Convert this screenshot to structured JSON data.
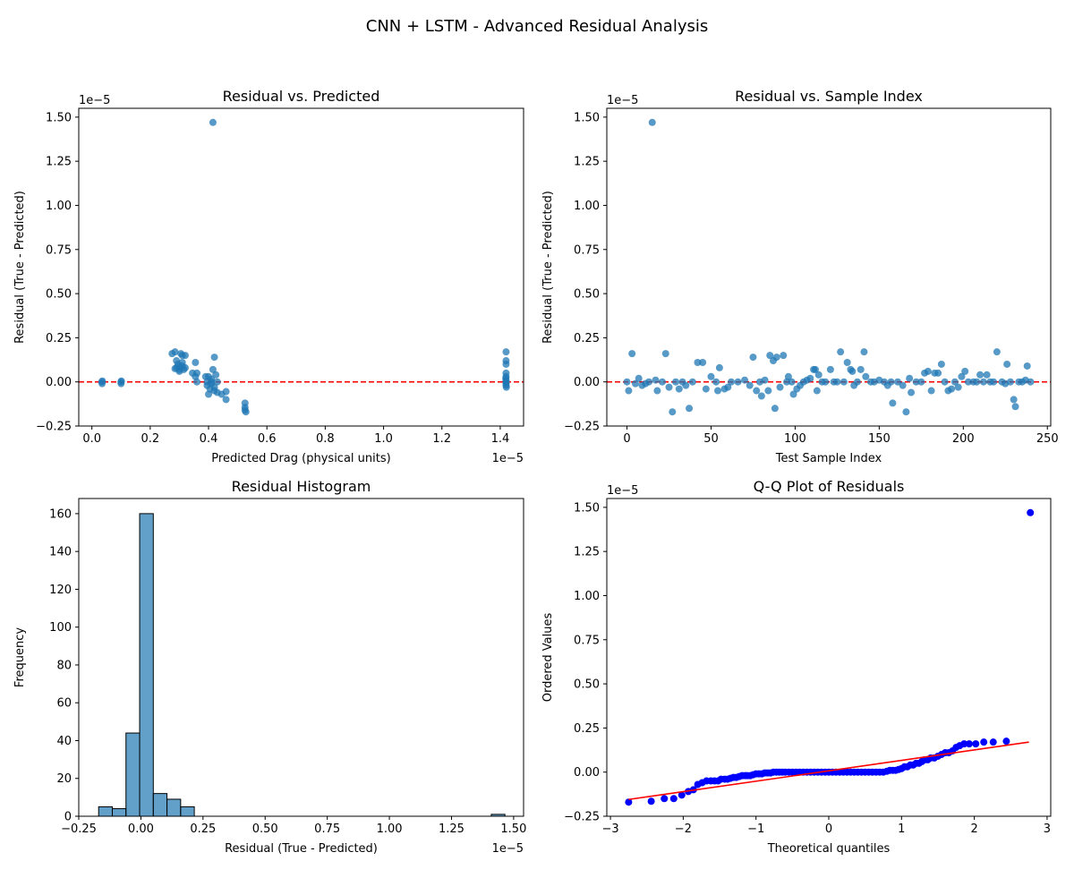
{
  "figure": {
    "title": "CNN + LSTM - Advanced Residual Analysis"
  },
  "colors": {
    "scatter": "#1f77b4",
    "hist": "#1f77b4",
    "zero_line": "#ff0000",
    "qq_points": "#0000ff",
    "qq_fit": "#ff0000"
  },
  "chart_data": [
    {
      "type": "scatter",
      "title": "Residual vs. Predicted",
      "xlabel": "Predicted Drag (physical units)",
      "ylabel": "Residual (True - Predicted)",
      "x_offset": "1e−5",
      "y_offset": "1e−5",
      "xlim": [
        -0.045,
        1.48
      ],
      "ylim": [
        -0.25,
        1.55
      ],
      "xticks": [
        0.0,
        0.2,
        0.4,
        0.6,
        0.8,
        1.0,
        1.2,
        1.4
      ],
      "xtick_labels": [
        "0.0",
        "0.2",
        "0.4",
        "0.6",
        "0.8",
        "1.0",
        "1.2",
        "1.4"
      ],
      "yticks": [
        -0.25,
        0.0,
        0.25,
        0.5,
        0.75,
        1.0,
        1.25,
        1.5
      ],
      "ytick_labels": [
        "−0.25",
        "0.00",
        "0.25",
        "0.50",
        "0.75",
        "1.00",
        "1.25",
        "1.50"
      ],
      "reference_line": {
        "y": 0.0,
        "style": "dashed"
      },
      "points": [
        [
          0.034,
          0.0
        ],
        [
          0.035,
          -0.01
        ],
        [
          0.036,
          0.005
        ],
        [
          0.1,
          0.0
        ],
        [
          0.1,
          -0.01
        ],
        [
          0.101,
          0.005
        ],
        [
          0.275,
          0.16
        ],
        [
          0.285,
          0.17
        ],
        [
          0.29,
          0.12
        ],
        [
          0.29,
          0.08
        ],
        [
          0.3,
          0.07
        ],
        [
          0.295,
          0.1
        ],
        [
          0.305,
          0.16
        ],
        [
          0.31,
          0.09
        ],
        [
          0.31,
          0.15
        ],
        [
          0.3,
          0.06
        ],
        [
          0.315,
          0.07
        ],
        [
          0.32,
          0.08
        ],
        [
          0.32,
          0.15
        ],
        [
          0.285,
          0.075
        ],
        [
          0.3,
          0.085
        ],
        [
          0.31,
          0.11
        ],
        [
          0.345,
          0.05
        ],
        [
          0.355,
          0.03
        ],
        [
          0.355,
          0.11
        ],
        [
          0.36,
          0.05
        ],
        [
          0.36,
          0.0
        ],
        [
          0.39,
          0.03
        ],
        [
          0.395,
          0.0
        ],
        [
          0.395,
          -0.02
        ],
        [
          0.4,
          -0.07
        ],
        [
          0.4,
          0.03
        ],
        [
          0.405,
          -0.04
        ],
        [
          0.41,
          0.0
        ],
        [
          0.41,
          -0.01
        ],
        [
          0.415,
          0.07
        ],
        [
          0.42,
          0.14
        ],
        [
          0.42,
          -0.03
        ],
        [
          0.42,
          -0.05
        ],
        [
          0.425,
          0.04
        ],
        [
          0.43,
          0.0
        ],
        [
          0.43,
          -0.06
        ],
        [
          0.41,
          0.015
        ],
        [
          0.445,
          -0.07
        ],
        [
          0.46,
          -0.1
        ],
        [
          0.46,
          -0.055
        ],
        [
          0.415,
          1.47
        ],
        [
          0.525,
          -0.12
        ],
        [
          0.525,
          -0.145
        ],
        [
          0.525,
          -0.16
        ],
        [
          0.528,
          -0.17
        ],
        [
          1.42,
          0.17
        ],
        [
          1.42,
          0.12
        ],
        [
          1.42,
          0.1
        ],
        [
          1.42,
          0.05
        ],
        [
          1.42,
          0.03
        ],
        [
          1.42,
          0.01
        ],
        [
          1.42,
          0.0
        ],
        [
          1.42,
          -0.01
        ],
        [
          1.42,
          -0.02
        ],
        [
          1.421,
          -0.03
        ],
        [
          1.419,
          0.02
        ]
      ]
    },
    {
      "type": "scatter",
      "title": "Residual vs. Sample Index",
      "xlabel": "Test Sample Index",
      "ylabel": "Residual (True - Predicted)",
      "y_offset": "1e−5",
      "xlim": [
        -12,
        252
      ],
      "ylim": [
        -0.25,
        1.55
      ],
      "xticks": [
        0,
        50,
        100,
        150,
        200,
        250
      ],
      "xtick_labels": [
        "0",
        "50",
        "100",
        "150",
        "200",
        "250"
      ],
      "yticks": [
        -0.25,
        0.0,
        0.25,
        0.5,
        0.75,
        1.0,
        1.25,
        1.5
      ],
      "ytick_labels": [
        "−0.25",
        "0.00",
        "0.25",
        "0.50",
        "0.75",
        "1.00",
        "1.25",
        "1.50"
      ],
      "reference_line": {
        "y": 0.0,
        "style": "dashed"
      },
      "points": [
        [
          0,
          0.0
        ],
        [
          1,
          -0.05
        ],
        [
          3,
          0.16
        ],
        [
          5,
          -0.01
        ],
        [
          7,
          0.02
        ],
        [
          9,
          -0.02
        ],
        [
          11,
          -0.01
        ],
        [
          13,
          0.0
        ],
        [
          15,
          1.47
        ],
        [
          17,
          0.01
        ],
        [
          18,
          -0.05
        ],
        [
          21,
          0.0
        ],
        [
          23,
          0.16
        ],
        [
          25,
          -0.03
        ],
        [
          27,
          -0.17
        ],
        [
          29,
          0.0
        ],
        [
          31,
          -0.04
        ],
        [
          33,
          0.0
        ],
        [
          35,
          -0.02
        ],
        [
          37,
          -0.15
        ],
        [
          39,
          0.0
        ],
        [
          42,
          0.11
        ],
        [
          45,
          0.11
        ],
        [
          47,
          -0.04
        ],
        [
          50,
          0.03
        ],
        [
          53,
          0.0
        ],
        [
          54,
          -0.05
        ],
        [
          55,
          0.08
        ],
        [
          58,
          -0.04
        ],
        [
          60,
          -0.03
        ],
        [
          62,
          0.0
        ],
        [
          66,
          0.0
        ],
        [
          70,
          0.01
        ],
        [
          73,
          -0.02
        ],
        [
          75,
          0.14
        ],
        [
          77,
          -0.05
        ],
        [
          79,
          0.0
        ],
        [
          80,
          -0.08
        ],
        [
          82,
          0.01
        ],
        [
          84,
          -0.05
        ],
        [
          85,
          0.15
        ],
        [
          87,
          0.12
        ],
        [
          88,
          -0.15
        ],
        [
          89,
          0.14
        ],
        [
          91,
          -0.03
        ],
        [
          93,
          0.15
        ],
        [
          95,
          0.0
        ],
        [
          96,
          0.03
        ],
        [
          98,
          0.0
        ],
        [
          99,
          -0.07
        ],
        [
          101,
          -0.04
        ],
        [
          103,
          -0.02
        ],
        [
          105,
          0.0
        ],
        [
          107,
          0.01
        ],
        [
          109,
          0.02
        ],
        [
          111,
          0.07
        ],
        [
          112,
          0.07
        ],
        [
          113,
          -0.05
        ],
        [
          114,
          0.04
        ],
        [
          116,
          0.0
        ],
        [
          118,
          0.0
        ],
        [
          121,
          0.07
        ],
        [
          123,
          0.0
        ],
        [
          125,
          0.0
        ],
        [
          127,
          0.17
        ],
        [
          129,
          0.0
        ],
        [
          131,
          0.11
        ],
        [
          133,
          0.07
        ],
        [
          134,
          0.06
        ],
        [
          135,
          -0.02
        ],
        [
          137,
          0.0
        ],
        [
          139,
          0.07
        ],
        [
          141,
          0.17
        ],
        [
          142,
          0.03
        ],
        [
          145,
          0.0
        ],
        [
          147,
          0.0
        ],
        [
          150,
          0.01
        ],
        [
          153,
          0.0
        ],
        [
          155,
          -0.02
        ],
        [
          157,
          0.0
        ],
        [
          158,
          -0.12
        ],
        [
          161,
          0.0
        ],
        [
          164,
          -0.02
        ],
        [
          166,
          -0.17
        ],
        [
          168,
          0.02
        ],
        [
          169,
          -0.06
        ],
        [
          172,
          0.0
        ],
        [
          175,
          0.0
        ],
        [
          177,
          0.05
        ],
        [
          179,
          0.06
        ],
        [
          181,
          -0.05
        ],
        [
          183,
          0.05
        ],
        [
          185,
          0.05
        ],
        [
          187,
          0.1
        ],
        [
          189,
          0.0
        ],
        [
          191,
          -0.05
        ],
        [
          193,
          -0.04
        ],
        [
          195,
          0.0
        ],
        [
          197,
          -0.03
        ],
        [
          199,
          0.03
        ],
        [
          201,
          0.06
        ],
        [
          203,
          0.0
        ],
        [
          206,
          0.0
        ],
        [
          208,
          0.0
        ],
        [
          210,
          0.04
        ],
        [
          212,
          0.0
        ],
        [
          214,
          0.04
        ],
        [
          216,
          0.0
        ],
        [
          218,
          0.0
        ],
        [
          220,
          0.17
        ],
        [
          223,
          0.0
        ],
        [
          225,
          -0.01
        ],
        [
          226,
          0.1
        ],
        [
          228,
          0.0
        ],
        [
          230,
          -0.1
        ],
        [
          231,
          -0.14
        ],
        [
          233,
          0.0
        ],
        [
          235,
          0.0
        ],
        [
          237,
          0.01
        ],
        [
          238,
          0.09
        ],
        [
          240,
          0.0
        ]
      ]
    },
    {
      "type": "bar",
      "title": "Residual Histogram",
      "xlabel": "Residual (True - Predicted)",
      "ylabel": "Frequency",
      "x_offset": "1e−5",
      "xlim": [
        -0.25,
        1.54
      ],
      "ylim": [
        0,
        168
      ],
      "xticks": [
        -0.25,
        0.0,
        0.25,
        0.5,
        0.75,
        1.0,
        1.25,
        1.5
      ],
      "xtick_labels": [
        "−0.25",
        "0.00",
        "0.25",
        "0.50",
        "0.75",
        "1.00",
        "1.25",
        "1.50"
      ],
      "yticks": [
        0,
        20,
        40,
        60,
        80,
        100,
        120,
        140,
        160
      ],
      "ytick_labels": [
        "0",
        "20",
        "40",
        "60",
        "80",
        "100",
        "120",
        "140",
        "160"
      ],
      "bins": [
        {
          "start": -0.17,
          "end": -0.115,
          "count": 5
        },
        {
          "start": -0.115,
          "end": -0.06,
          "count": 4
        },
        {
          "start": -0.06,
          "end": -0.005,
          "count": 44
        },
        {
          "start": -0.005,
          "end": 0.05,
          "count": 160
        },
        {
          "start": 0.05,
          "end": 0.105,
          "count": 12
        },
        {
          "start": 0.105,
          "end": 0.16,
          "count": 9
        },
        {
          "start": 0.16,
          "end": 0.215,
          "count": 5
        },
        {
          "start": 1.41,
          "end": 1.465,
          "count": 1
        }
      ]
    },
    {
      "type": "scatter",
      "title": "Q-Q Plot of Residuals",
      "xlabel": "Theoretical quantiles",
      "ylabel": "Ordered Values",
      "y_offset": "1e−5",
      "xlim": [
        -3.05,
        3.05
      ],
      "ylim": [
        -0.25,
        1.55
      ],
      "xticks": [
        -3,
        -2,
        -1,
        0,
        1,
        2,
        3
      ],
      "xtick_labels": [
        "−3",
        "−2",
        "−1",
        "0",
        "1",
        "2",
        "3"
      ],
      "yticks": [
        -0.25,
        0.0,
        0.25,
        0.5,
        0.75,
        1.0,
        1.25,
        1.5
      ],
      "ytick_labels": [
        "−0.25",
        "0.00",
        "0.25",
        "0.50",
        "0.75",
        "1.00",
        "1.25",
        "1.50"
      ],
      "fit_line": {
        "x": [
          -2.75,
          2.75
        ],
        "y": [
          -0.155,
          0.17
        ]
      },
      "points": [
        [
          -2.75,
          -0.17
        ],
        [
          -2.44,
          -0.165
        ],
        [
          -2.26,
          -0.15
        ],
        [
          -2.13,
          -0.15
        ],
        [
          -2.02,
          -0.13
        ],
        [
          -1.93,
          -0.11
        ],
        [
          -1.86,
          -0.1
        ],
        [
          -1.8,
          -0.07
        ],
        [
          -1.74,
          -0.06
        ],
        [
          -1.68,
          -0.05
        ],
        [
          -1.62,
          -0.05
        ],
        [
          -1.57,
          -0.05
        ],
        [
          -1.52,
          -0.05
        ],
        [
          -1.48,
          -0.04
        ],
        [
          -1.43,
          -0.04
        ],
        [
          -1.39,
          -0.04
        ],
        [
          -1.35,
          -0.035
        ],
        [
          -1.31,
          -0.03
        ],
        [
          -1.27,
          -0.03
        ],
        [
          -1.23,
          -0.025
        ],
        [
          -1.19,
          -0.02
        ],
        [
          -1.15,
          -0.02
        ],
        [
          -1.12,
          -0.02
        ],
        [
          -1.08,
          -0.02
        ],
        [
          -1.04,
          -0.015
        ],
        [
          -1.0,
          -0.01
        ],
        [
          -0.96,
          -0.01
        ],
        [
          -0.92,
          -0.01
        ],
        [
          -0.88,
          -0.005
        ],
        [
          -0.84,
          -0.005
        ],
        [
          -0.8,
          -0.005
        ],
        [
          -0.76,
          0.0
        ],
        [
          -0.72,
          0.0
        ],
        [
          -0.68,
          0.0
        ],
        [
          -0.64,
          0.0
        ],
        [
          -0.6,
          0.0
        ],
        [
          -0.55,
          0.0
        ],
        [
          -0.5,
          0.0
        ],
        [
          -0.45,
          0.0
        ],
        [
          -0.4,
          0.0
        ],
        [
          -0.35,
          0.0
        ],
        [
          -0.3,
          0.0
        ],
        [
          -0.25,
          0.0
        ],
        [
          -0.2,
          0.0
        ],
        [
          -0.15,
          0.0
        ],
        [
          -0.1,
          0.0
        ],
        [
          -0.05,
          0.0
        ],
        [
          0.0,
          0.0
        ],
        [
          0.05,
          0.0
        ],
        [
          0.1,
          0.0
        ],
        [
          0.15,
          0.0
        ],
        [
          0.2,
          0.0
        ],
        [
          0.25,
          0.0
        ],
        [
          0.3,
          0.0
        ],
        [
          0.35,
          0.0
        ],
        [
          0.4,
          0.0
        ],
        [
          0.45,
          0.0
        ],
        [
          0.5,
          0.0
        ],
        [
          0.55,
          0.0
        ],
        [
          0.6,
          0.0
        ],
        [
          0.65,
          0.0
        ],
        [
          0.7,
          0.0
        ],
        [
          0.75,
          0.0
        ],
        [
          0.8,
          0.005
        ],
        [
          0.84,
          0.01
        ],
        [
          0.88,
          0.01
        ],
        [
          0.92,
          0.01
        ],
        [
          0.96,
          0.015
        ],
        [
          1.0,
          0.02
        ],
        [
          1.04,
          0.03
        ],
        [
          1.08,
          0.03
        ],
        [
          1.12,
          0.04
        ],
        [
          1.16,
          0.04
        ],
        [
          1.2,
          0.05
        ],
        [
          1.24,
          0.05
        ],
        [
          1.28,
          0.06
        ],
        [
          1.32,
          0.07
        ],
        [
          1.36,
          0.07
        ],
        [
          1.4,
          0.08
        ],
        [
          1.45,
          0.08
        ],
        [
          1.5,
          0.09
        ],
        [
          1.55,
          0.1
        ],
        [
          1.6,
          0.11
        ],
        [
          1.65,
          0.11
        ],
        [
          1.7,
          0.12
        ],
        [
          1.75,
          0.14
        ],
        [
          1.8,
          0.15
        ],
        [
          1.86,
          0.16
        ],
        [
          1.93,
          0.16
        ],
        [
          2.02,
          0.16
        ],
        [
          2.13,
          0.17
        ],
        [
          2.26,
          0.17
        ],
        [
          2.44,
          0.175
        ],
        [
          2.77,
          1.47
        ]
      ]
    }
  ]
}
